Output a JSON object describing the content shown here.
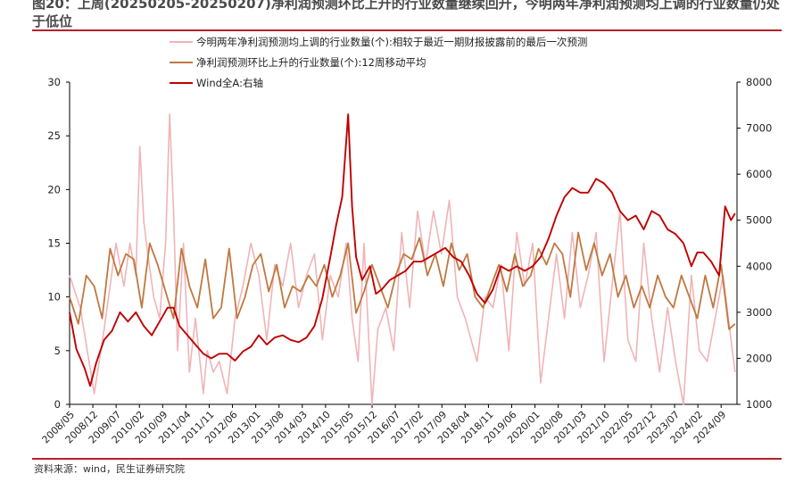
{
  "header": {
    "title": "图20：上周(20250205-20250207)净利润预测环比上升的行业数量继续回升，今明两年净利润预测均上调的行业数量仍处于低位"
  },
  "footer": {
    "source": "资料来源：wind，民生证券研究院"
  },
  "colors": {
    "pink": "#f0b4b8",
    "brown": "#c07840",
    "red": "#c00000",
    "rule": "#b8202c"
  },
  "chart_data": {
    "type": "line",
    "x_tick_labels": [
      "2008/05",
      "2008/12",
      "2009/07",
      "2010/02",
      "2010/09",
      "2011/04",
      "2011/11",
      "2012/06",
      "2013/01",
      "2013/08",
      "2014/03",
      "2014/10",
      "2015/05",
      "2015/12",
      "2016/07",
      "2017/02",
      "2017/09",
      "2018/04",
      "2018/11",
      "2019/06",
      "2020/01",
      "2020/08",
      "2021/03",
      "2021/10",
      "2022/05",
      "2022/12",
      "2023/07",
      "2024/02",
      "2024/09"
    ],
    "y_left": {
      "range": [
        0,
        30
      ],
      "ticks": [
        "0",
        "5",
        "10",
        "15",
        "20",
        "25",
        "30"
      ]
    },
    "y_right": {
      "range": [
        1000,
        8000
      ],
      "ticks": [
        "1000",
        "2000",
        "3000",
        "4000",
        "5000",
        "6000",
        "7000",
        "8000"
      ]
    },
    "legend_position": "top-center",
    "series": [
      {
        "name": "今明两年净利润预测均上调的行业数量(个):相较于最近一期财报披露前的最后一次预测",
        "axis": "left",
        "x": [
          2008.33,
          2008.6,
          2008.95,
          2009.2,
          2009.5,
          2009.7,
          2009.85,
          2010.0,
          2010.1,
          2010.2,
          2010.3,
          2010.45,
          2010.6,
          2010.75,
          2010.85,
          2010.95,
          2011.05,
          2011.2,
          2011.35,
          2011.5,
          2011.7,
          2011.8,
          2011.95,
          2012.1,
          2012.3,
          2012.5,
          2012.7,
          2012.9,
          2013.1,
          2013.3,
          2013.5,
          2013.7,
          2013.9,
          2014.1,
          2014.3,
          2014.5,
          2014.7,
          2014.9,
          2015.1,
          2015.3,
          2015.45,
          2015.6,
          2015.75,
          2015.95,
          2016.1,
          2016.3,
          2016.5,
          2016.7,
          2016.9,
          2017.1,
          2017.3,
          2017.5,
          2017.7,
          2017.9,
          2018.1,
          2018.3,
          2018.45,
          2018.6,
          2018.8,
          2019.0,
          2019.2,
          2019.4,
          2019.6,
          2019.8,
          2020.0,
          2020.2,
          2020.4,
          2020.6,
          2020.8,
          2021.0,
          2021.2,
          2021.4,
          2021.6,
          2021.8,
          2022.0,
          2022.2,
          2022.4,
          2022.6,
          2022.8,
          2023.0,
          2023.2,
          2023.4,
          2023.6,
          2023.8,
          2024.0,
          2024.2,
          2024.4,
          2024.6,
          2024.8,
          2025.1
        ],
        "values": [
          12,
          9,
          1,
          7,
          15,
          11,
          15,
          12,
          24,
          17,
          14,
          10,
          8,
          15,
          27,
          18,
          5,
          15,
          3,
          8,
          1,
          5,
          3,
          4,
          1,
          8,
          11,
          15,
          12,
          6,
          13,
          11,
          15,
          9,
          12,
          14,
          6,
          12,
          10,
          15,
          8,
          4,
          15,
          0,
          7,
          9,
          5,
          16,
          9,
          18,
          13,
          18,
          14,
          19,
          10,
          8,
          6,
          4,
          10,
          9,
          13,
          5,
          16,
          11,
          15,
          2,
          8,
          14,
          8,
          16,
          9,
          12,
          16,
          4,
          11,
          18,
          6,
          4,
          15,
          8,
          3,
          9,
          4,
          0,
          12,
          5,
          4,
          8,
          12,
          3
        ]
      },
      {
        "name": "净利润预测环比上升的行业数量(个):12周移动平均",
        "axis": "left",
        "x": [
          2008.33,
          2008.55,
          2008.75,
          2008.95,
          2009.15,
          2009.35,
          2009.55,
          2009.75,
          2009.95,
          2010.15,
          2010.35,
          2010.55,
          2010.75,
          2010.95,
          2011.15,
          2011.35,
          2011.55,
          2011.75,
          2011.95,
          2012.15,
          2012.35,
          2012.55,
          2012.75,
          2012.95,
          2013.15,
          2013.35,
          2013.55,
          2013.75,
          2013.95,
          2014.15,
          2014.35,
          2014.55,
          2014.75,
          2014.95,
          2015.15,
          2015.35,
          2015.55,
          2015.75,
          2015.95,
          2016.15,
          2016.35,
          2016.55,
          2016.75,
          2016.95,
          2017.15,
          2017.35,
          2017.55,
          2017.75,
          2017.95,
          2018.15,
          2018.35,
          2018.55,
          2018.75,
          2018.95,
          2019.15,
          2019.35,
          2019.55,
          2019.75,
          2019.95,
          2020.15,
          2020.35,
          2020.55,
          2020.75,
          2020.95,
          2021.15,
          2021.35,
          2021.55,
          2021.75,
          2021.95,
          2022.15,
          2022.35,
          2022.55,
          2022.75,
          2022.95,
          2023.15,
          2023.35,
          2023.55,
          2023.75,
          2023.95,
          2024.15,
          2024.35,
          2024.55,
          2024.75,
          2024.95,
          2025.1
        ],
        "values": [
          10,
          7.5,
          12,
          11,
          8,
          14.5,
          12,
          14,
          13.5,
          9,
          15,
          13,
          10.5,
          8,
          14.5,
          11,
          9,
          13.5,
          8,
          9,
          14.5,
          8,
          10,
          13,
          14,
          10.5,
          13,
          9,
          11,
          10.5,
          12,
          11,
          13,
          10,
          12,
          15,
          8.5,
          10.5,
          13,
          11,
          9,
          12,
          14,
          13.5,
          15.5,
          12,
          14,
          11,
          15,
          12.5,
          14,
          10,
          9,
          11,
          13,
          10.5,
          14,
          11,
          12,
          14.5,
          13,
          15,
          14,
          10,
          16,
          12.5,
          15,
          12,
          14,
          10,
          12,
          9,
          11,
          9,
          12,
          10,
          9,
          12,
          10,
          8,
          12,
          9,
          13,
          7,
          7.5
        ]
      },
      {
        "name": "Wind全A:右轴",
        "axis": "right",
        "x": [
          2008.33,
          2008.5,
          2008.7,
          2008.85,
          2009.0,
          2009.2,
          2009.4,
          2009.6,
          2009.8,
          2010.0,
          2010.2,
          2010.4,
          2010.6,
          2010.8,
          2010.95,
          2011.1,
          2011.3,
          2011.5,
          2011.7,
          2011.9,
          2012.1,
          2012.3,
          2012.5,
          2012.7,
          2012.9,
          2013.1,
          2013.3,
          2013.5,
          2013.7,
          2013.9,
          2014.1,
          2014.3,
          2014.5,
          2014.7,
          2014.9,
          2015.05,
          2015.2,
          2015.35,
          2015.45,
          2015.55,
          2015.7,
          2015.9,
          2016.05,
          2016.2,
          2016.4,
          2016.6,
          2016.8,
          2017.0,
          2017.2,
          2017.4,
          2017.6,
          2017.8,
          2018.0,
          2018.2,
          2018.4,
          2018.6,
          2018.8,
          2019.0,
          2019.2,
          2019.4,
          2019.6,
          2019.8,
          2020.0,
          2020.2,
          2020.4,
          2020.6,
          2020.8,
          2021.0,
          2021.2,
          2021.4,
          2021.6,
          2021.8,
          2022.0,
          2022.2,
          2022.4,
          2022.6,
          2022.8,
          2023.0,
          2023.2,
          2023.4,
          2023.6,
          2023.8,
          2024.0,
          2024.15,
          2024.3,
          2024.5,
          2024.7,
          2024.85,
          2025.0,
          2025.1
        ],
        "values": [
          3000,
          2200,
          1800,
          1400,
          1900,
          2400,
          2600,
          3000,
          2800,
          3000,
          2700,
          2500,
          2800,
          3100,
          3100,
          2700,
          2500,
          2300,
          2100,
          2000,
          2100,
          2100,
          1950,
          2150,
          2250,
          2500,
          2300,
          2450,
          2500,
          2400,
          2350,
          2450,
          2700,
          3300,
          4200,
          4900,
          5500,
          7300,
          5300,
          4200,
          3700,
          4000,
          3400,
          3500,
          3700,
          3800,
          3900,
          4100,
          4100,
          4200,
          4300,
          4400,
          4200,
          4100,
          3800,
          3400,
          3200,
          3500,
          4000,
          3900,
          4000,
          3900,
          4000,
          4200,
          4600,
          5100,
          5500,
          5700,
          5600,
          5600,
          5900,
          5800,
          5600,
          5200,
          5000,
          5100,
          4800,
          5200,
          5100,
          4800,
          4700,
          4500,
          4000,
          4300,
          4300,
          4100,
          3800,
          5300,
          5000,
          5150
        ]
      }
    ]
  }
}
